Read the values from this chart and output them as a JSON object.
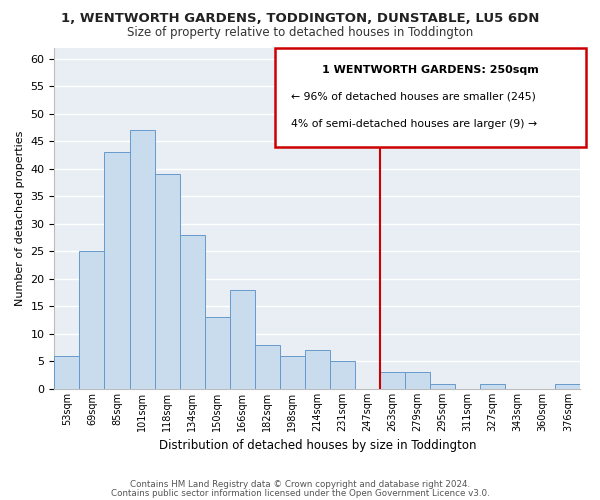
{
  "title": "1, WENTWORTH GARDENS, TODDINGTON, DUNSTABLE, LU5 6DN",
  "subtitle": "Size of property relative to detached houses in Toddington",
  "xlabel": "Distribution of detached houses by size in Toddington",
  "ylabel": "Number of detached properties",
  "bar_labels": [
    "53sqm",
    "69sqm",
    "85sqm",
    "101sqm",
    "118sqm",
    "134sqm",
    "150sqm",
    "166sqm",
    "182sqm",
    "198sqm",
    "214sqm",
    "231sqm",
    "247sqm",
    "263sqm",
    "279sqm",
    "295sqm",
    "311sqm",
    "327sqm",
    "343sqm",
    "360sqm",
    "376sqm"
  ],
  "bar_values": [
    6,
    25,
    43,
    47,
    39,
    28,
    13,
    18,
    8,
    6,
    7,
    5,
    0,
    3,
    3,
    1,
    0,
    1,
    0,
    0,
    1
  ],
  "bar_color": "#c8dced",
  "bar_edge_color": "#6699cc",
  "vline_x": 12.5,
  "vline_color": "#cc0000",
  "annotation_title": "1 WENTWORTH GARDENS: 250sqm",
  "annotation_line1": "← 96% of detached houses are smaller (245)",
  "annotation_line2": "4% of semi-detached houses are larger (9) →",
  "ylim": [
    0,
    62
  ],
  "yticks": [
    0,
    5,
    10,
    15,
    20,
    25,
    30,
    35,
    40,
    45,
    50,
    55,
    60
  ],
  "bg_color": "#ffffff",
  "plot_bg_color": "#e8eef4",
  "grid_color": "#ffffff",
  "footer1": "Contains HM Land Registry data © Crown copyright and database right 2024.",
  "footer2": "Contains public sector information licensed under the Open Government Licence v3.0."
}
